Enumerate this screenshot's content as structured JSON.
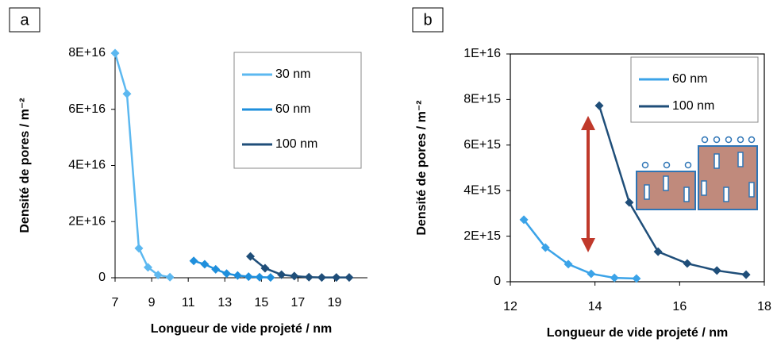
{
  "chart_data": [
    {
      "type": "line",
      "label": "a",
      "x_label": "Longueur de vide projeté / nm",
      "y_label": "Densité de pores / m⁻²",
      "xlim": [
        7,
        20.8
      ],
      "xticks": [
        7,
        9,
        11,
        13,
        15,
        17,
        19
      ],
      "ylim": [
        0,
        8e+16
      ],
      "yticks": [
        0,
        {
          "value": 2e+16,
          "label": "2E+16"
        },
        {
          "value": 4e+16,
          "label": "4E+16"
        },
        {
          "value": 6e+16,
          "label": "6E+16"
        },
        {
          "value": 8e+16,
          "label": "8E+16"
        }
      ],
      "legend": "top-right",
      "series": [
        {
          "name": "30 nm",
          "color": "#5cb8f0",
          "x": [
            7.0,
            7.65,
            8.3,
            8.8,
            9.35,
            10.0
          ],
          "values": [
            8e+16,
            6.55e+16,
            1.05e+16,
            3700000000000000.0,
            1000000000000000.0,
            200000000000000.0
          ]
        },
        {
          "name": "60 nm",
          "color": "#1f8fdc",
          "x": [
            11.3,
            11.9,
            12.5,
            13.1,
            13.7,
            14.3,
            14.9,
            15.5
          ],
          "values": [
            6000000000000000.0,
            4800000000000000.0,
            3000000000000000.0,
            1500000000000000.0,
            800000000000000.0,
            400000000000000.0,
            200000000000000.0,
            100000000000000.0
          ]
        },
        {
          "name": "100 nm",
          "color": "#1f4e79",
          "x": [
            14.4,
            15.2,
            16.1,
            16.8,
            17.6,
            18.3,
            19.1,
            19.8
          ],
          "values": [
            7600000000000000.0,
            3400000000000000.0,
            1100000000000000.0,
            600000000000000.0,
            200000000000000.0,
            100000000000000.0,
            100000000000000.0,
            100000000000000.0
          ]
        }
      ]
    },
    {
      "type": "line",
      "label": "b",
      "x_label": "Longueur de vide projeté / nm",
      "y_label": "Densité de pores / m⁻²",
      "xlim": [
        12,
        18
      ],
      "xticks": [
        12,
        14,
        16,
        18
      ],
      "ylim": [
        0,
        1e+16
      ],
      "yticks": [
        0,
        {
          "value": 2000000000000000.0,
          "label": "2E+15"
        },
        {
          "value": 4000000000000000.0,
          "label": "4E+15"
        },
        {
          "value": 6000000000000000.0,
          "label": "6E+15"
        },
        {
          "value": 8000000000000000.0,
          "label": "8E+15"
        },
        {
          "value": 1e+16,
          "label": "1E+16"
        }
      ],
      "legend": "top-right",
      "series": [
        {
          "name": "60 nm",
          "color": "#3ba3e8",
          "x": [
            12.32,
            12.83,
            13.37,
            13.91,
            14.46,
            14.98
          ],
          "values": [
            2720000000000000.0,
            1500000000000000.0,
            770000000000000.0,
            350000000000000.0,
            170000000000000.0,
            140000000000000.0
          ]
        },
        {
          "name": "100 nm",
          "color": "#1f4e79",
          "x": [
            14.1,
            14.81,
            15.49,
            16.18,
            16.88,
            17.57
          ],
          "values": [
            7730000000000000.0,
            3480000000000000.0,
            1320000000000000.0,
            800000000000000.0,
            490000000000000.0,
            310000000000000.0
          ]
        }
      ]
    }
  ]
}
